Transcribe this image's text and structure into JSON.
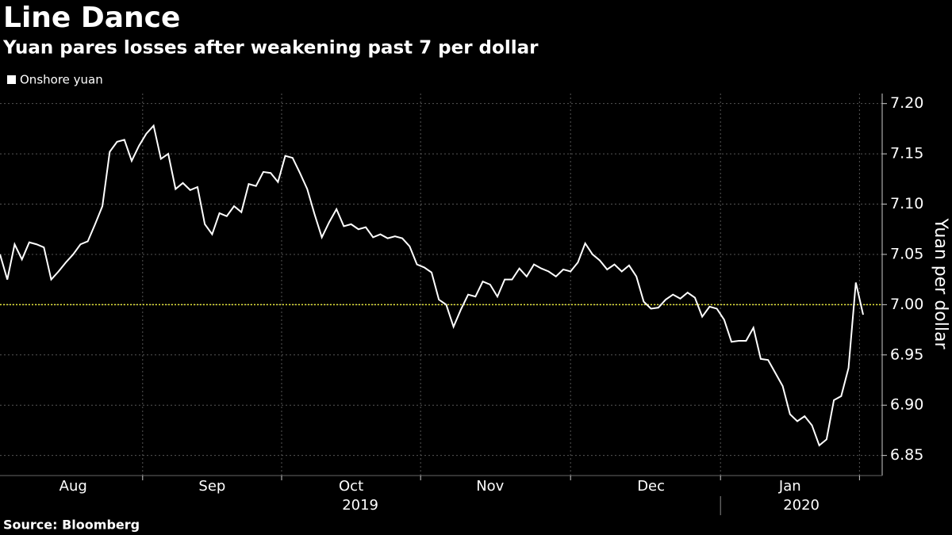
{
  "chart_data": {
    "type": "line",
    "title": "Line Dance",
    "subtitle": "Yuan pares losses after weakening past 7 per dollar",
    "source": "Source: Bloomberg",
    "y_axis_label": "Yuan per dollar",
    "year_labels": [
      "2019",
      "2020"
    ],
    "categories": [
      null,
      null,
      null,
      null,
      null,
      null,
      null,
      null,
      null,
      null,
      "Aug",
      null,
      null,
      null,
      null,
      null,
      null,
      null,
      null,
      null,
      null,
      null,
      null,
      null,
      null,
      null,
      null,
      null,
      null,
      "Sep",
      null,
      null,
      null,
      null,
      null,
      null,
      null,
      null,
      null,
      null,
      null,
      null,
      null,
      null,
      null,
      null,
      null,
      null,
      "Oct",
      null,
      null,
      null,
      null,
      null,
      null,
      null,
      null,
      null,
      null,
      null,
      null,
      null,
      null,
      null,
      null,
      null,
      null,
      "Nov",
      null,
      null,
      null,
      null,
      null,
      null,
      null,
      null,
      null,
      null,
      null,
      null,
      null,
      null,
      null,
      null,
      null,
      null,
      null,
      null,
      null,
      "Dec",
      null,
      null,
      null,
      null,
      null,
      null,
      null,
      null,
      null,
      null,
      null,
      null,
      null,
      null,
      null,
      null,
      null,
      null,
      "Jan",
      null,
      null,
      null,
      null,
      null,
      null,
      null,
      null,
      null,
      null
    ],
    "series": [
      {
        "name": "Onshore yuan",
        "color": "#ffffff",
        "values": [
          7.05,
          7.025,
          7.06,
          7.045,
          7.062,
          7.06,
          7.057,
          7.025,
          7.033,
          7.042,
          7.05,
          7.06,
          7.063,
          7.08,
          7.098,
          7.152,
          7.162,
          7.164,
          7.143,
          7.158,
          7.17,
          7.178,
          7.145,
          7.15,
          7.115,
          7.121,
          7.114,
          7.117,
          7.08,
          7.07,
          7.091,
          7.088,
          7.098,
          7.092,
          7.12,
          7.118,
          7.132,
          7.131,
          7.122,
          7.148,
          7.146,
          7.131,
          7.115,
          7.09,
          7.067,
          7.082,
          7.095,
          7.078,
          7.08,
          7.075,
          7.077,
          7.067,
          7.07,
          7.066,
          7.068,
          7.066,
          7.058,
          7.04,
          7.037,
          7.032,
          7.005,
          7.0,
          6.978,
          6.995,
          7.01,
          7.008,
          7.023,
          7.02,
          7.008,
          7.025,
          7.025,
          7.036,
          7.028,
          7.04,
          7.036,
          7.033,
          7.028,
          7.035,
          7.033,
          7.042,
          7.061,
          7.05,
          7.044,
          7.035,
          7.04,
          7.033,
          7.039,
          7.028,
          7.003,
          6.996,
          6.997,
          7.005,
          7.01,
          7.006,
          7.012,
          7.007,
          6.988,
          6.998,
          6.996,
          6.985,
          6.963,
          6.964,
          6.964,
          6.977,
          6.946,
          6.945,
          6.932,
          6.919,
          6.891,
          6.884,
          6.889,
          6.88,
          6.86,
          6.866,
          6.905,
          6.909,
          6.937,
          7.022,
          6.99
        ]
      }
    ],
    "ylim": [
      6.83,
      7.21
    ],
    "yticks": [
      {
        "value": 6.85,
        "label": "6.85"
      },
      {
        "value": 6.9,
        "label": "6.90"
      },
      {
        "value": 6.95,
        "label": "6.95"
      },
      {
        "value": 7.0,
        "label": "7.00"
      },
      {
        "value": 7.05,
        "label": "7.05"
      },
      {
        "value": 7.1,
        "label": "7.10"
      },
      {
        "value": 7.15,
        "label": "7.15"
      },
      {
        "value": 7.2,
        "label": "7.20"
      }
    ],
    "reference_line": {
      "value": 7.0,
      "color": "#e6e639"
    },
    "grid": true
  }
}
